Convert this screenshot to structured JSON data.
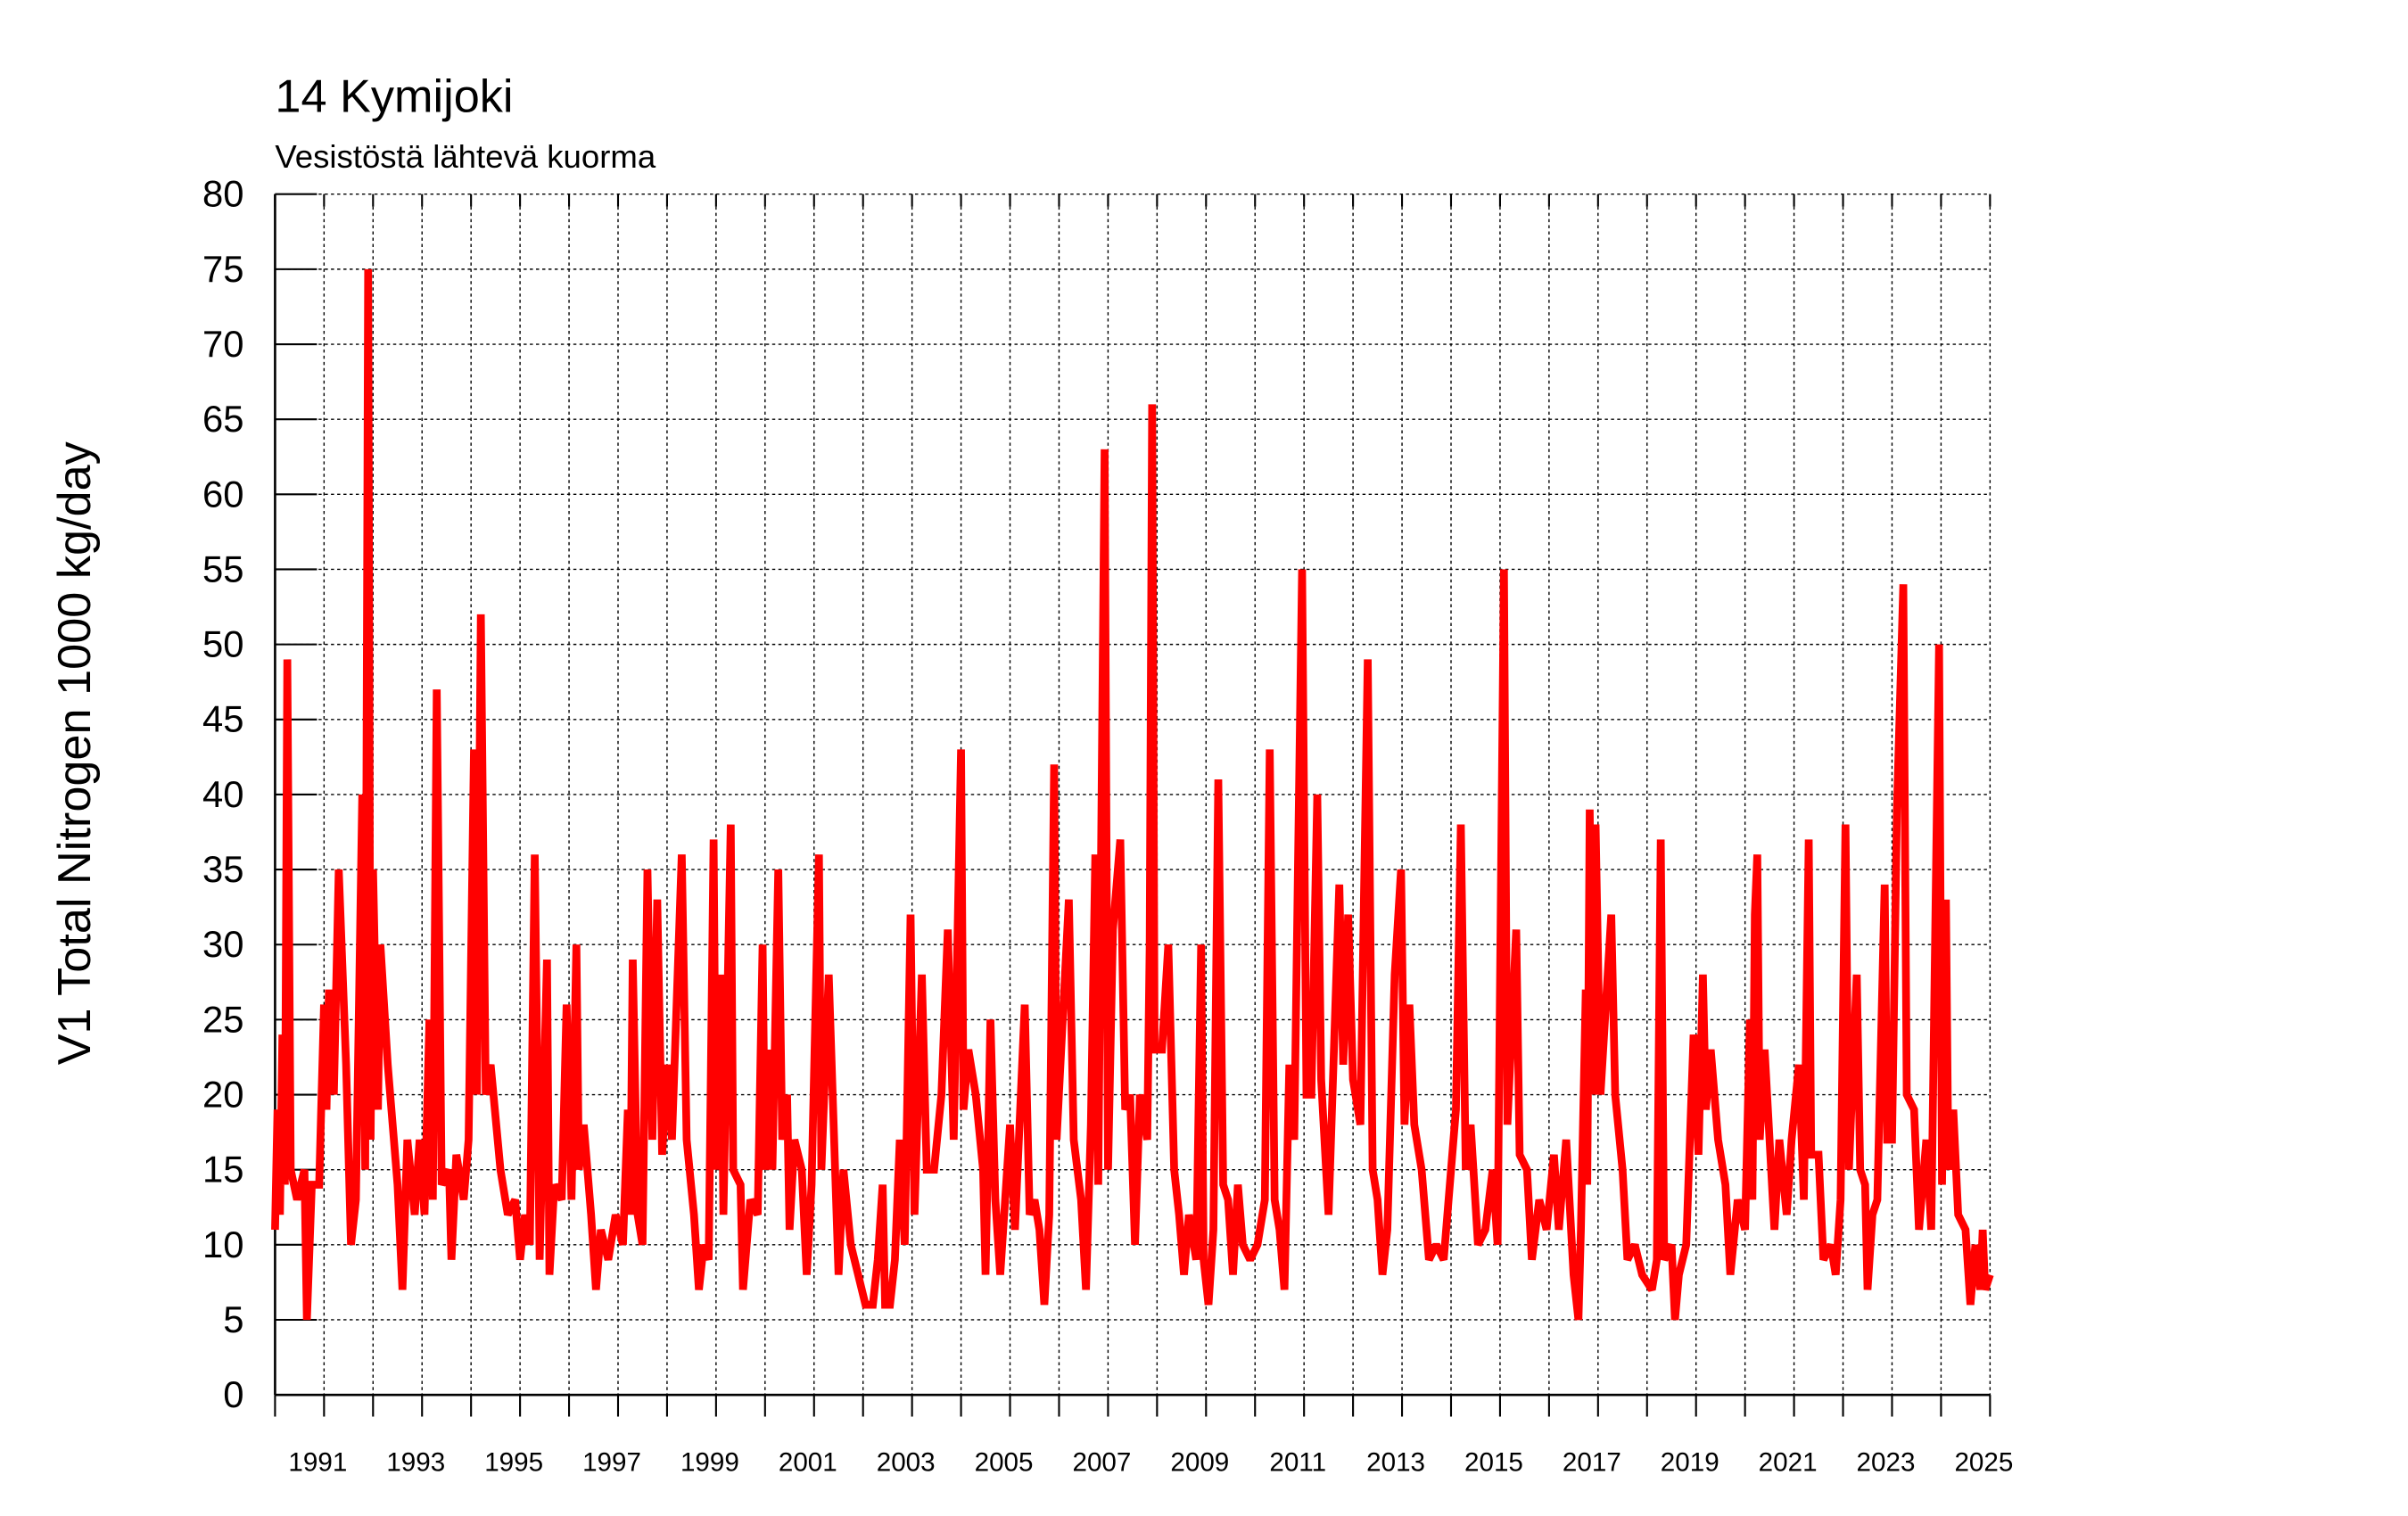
{
  "chart_data": {
    "type": "line",
    "title": "14 Kymijoki",
    "subtitle": "Vesistöstä lähtevä kuorma",
    "ylabel": "V1 Total Nitrogen 1000 kg/day",
    "color": "#ff0000",
    "grid": true,
    "xlim": [
      1990,
      2025
    ],
    "ylim": [
      0,
      80
    ],
    "yticks": [
      0,
      5,
      10,
      15,
      20,
      25,
      30,
      35,
      40,
      45,
      50,
      55,
      60,
      65,
      70,
      75,
      80
    ],
    "xticks": [
      1991,
      1993,
      1995,
      1997,
      1999,
      2001,
      2003,
      2005,
      2007,
      2009,
      2011,
      2013,
      2015,
      2017,
      2019,
      2021,
      2023,
      2025
    ],
    "xminor_ticks": [
      1990,
      1992,
      1994,
      1996,
      1998,
      2000,
      2002,
      2004,
      2006,
      2008,
      2010,
      2012,
      2014,
      2016,
      2018,
      2020,
      2022,
      2024
    ],
    "x": [
      1990.0,
      1990.05,
      1990.1,
      1990.15,
      1990.2,
      1990.25,
      1990.32,
      1990.45,
      1990.6,
      1990.65,
      1990.75,
      1990.9,
      1991.0,
      1991.05,
      1991.1,
      1991.2,
      1991.3,
      1991.45,
      1991.55,
      1991.65,
      1991.78,
      1991.84,
      1991.9,
      1991.95,
      1992.0,
      1992.1,
      1992.15,
      1992.3,
      1992.5,
      1992.6,
      1992.7,
      1992.85,
      1992.95,
      1993.05,
      1993.15,
      1993.22,
      1993.3,
      1993.4,
      1993.55,
      1993.6,
      1993.7,
      1993.85,
      1993.95,
      1994.06,
      1994.12,
      1994.2,
      1994.3,
      1994.4,
      1994.6,
      1994.75,
      1994.9,
      1995.0,
      1995.1,
      1995.2,
      1995.3,
      1995.4,
      1995.55,
      1995.6,
      1995.7,
      1995.85,
      1995.95,
      1996.05,
      1996.15,
      1996.2,
      1996.3,
      1996.45,
      1996.55,
      1996.65,
      1996.8,
      1996.95,
      1997.1,
      1997.2,
      1997.25,
      1997.3,
      1997.4,
      1997.5,
      1997.6,
      1997.7,
      1997.8,
      1997.9,
      1998.0,
      1998.1,
      1998.3,
      1998.4,
      1998.55,
      1998.65,
      1998.75,
      1998.85,
      1998.95,
      1999.0,
      1999.1,
      1999.15,
      1999.3,
      1999.35,
      1999.5,
      1999.55,
      1999.7,
      1999.85,
      1999.95,
      2000.0,
      2000.1,
      2000.15,
      2000.27,
      2000.35,
      2000.45,
      2000.5,
      2000.6,
      2000.75,
      2000.85,
      2000.95,
      2001.1,
      2001.15,
      2001.3,
      2001.4,
      2001.5,
      2001.6,
      2001.75,
      2001.9,
      2002.05,
      2002.2,
      2002.3,
      2002.4,
      2002.45,
      2002.55,
      2002.65,
      2002.75,
      2002.85,
      2002.97,
      2003.05,
      2003.2,
      2003.3,
      2003.45,
      2003.6,
      2003.73,
      2003.85,
      2004.0,
      2004.05,
      2004.15,
      2004.3,
      2004.45,
      2004.5,
      2004.6,
      2004.7,
      2004.8,
      2004.9,
      2005.0,
      2005.1,
      2005.3,
      2005.4,
      2005.5,
      2005.6,
      2005.7,
      2005.8,
      2005.9,
      2005.95,
      2006.2,
      2006.3,
      2006.45,
      2006.55,
      2006.65,
      2006.74,
      2006.8,
      2006.93,
      2007.0,
      2007.1,
      2007.25,
      2007.35,
      2007.45,
      2007.55,
      2007.65,
      2007.8,
      2007.85,
      2007.9,
      2007.95,
      2008.1,
      2008.23,
      2008.35,
      2008.45,
      2008.55,
      2008.65,
      2008.8,
      2008.9,
      2008.95,
      2009.05,
      2009.15,
      2009.25,
      2009.35,
      2009.45,
      2009.55,
      2009.65,
      2009.75,
      2009.9,
      2010.05,
      2010.2,
      2010.3,
      2010.4,
      2010.5,
      2010.6,
      2010.7,
      2010.8,
      2010.96,
      2011.05,
      2011.15,
      2011.27,
      2011.35,
      2011.5,
      2011.6,
      2011.72,
      2011.8,
      2011.9,
      2012.0,
      2012.15,
      2012.3,
      2012.4,
      2012.5,
      2012.6,
      2012.7,
      2012.85,
      2012.98,
      2013.05,
      2013.15,
      2013.25,
      2013.4,
      2013.55,
      2013.7,
      2013.85,
      2013.95,
      2014.1,
      2014.2,
      2014.3,
      2014.4,
      2014.55,
      2014.7,
      2014.85,
      2014.95,
      2015.08,
      2015.15,
      2015.33,
      2015.4,
      2015.55,
      2015.65,
      2015.8,
      2015.95,
      2016.1,
      2016.2,
      2016.35,
      2016.5,
      2016.6,
      2016.65,
      2016.75,
      2016.78,
      2016.83,
      2016.9,
      2016.95,
      2017.05,
      2017.27,
      2017.35,
      2017.5,
      2017.6,
      2017.75,
      2017.9,
      2018.1,
      2018.2,
      2018.28,
      2018.35,
      2018.5,
      2018.57,
      2018.65,
      2018.8,
      2018.95,
      2019.05,
      2019.14,
      2019.2,
      2019.3,
      2019.45,
      2019.6,
      2019.7,
      2019.85,
      2020.0,
      2020.1,
      2020.15,
      2020.2,
      2020.25,
      2020.3,
      2020.4,
      2020.5,
      2020.6,
      2020.7,
      2020.85,
      2020.95,
      2021.1,
      2021.2,
      2021.3,
      2021.35,
      2021.5,
      2021.6,
      2021.75,
      2021.85,
      2021.95,
      2022.05,
      2022.12,
      2022.28,
      2022.35,
      2022.45,
      2022.5,
      2022.6,
      2022.7,
      2022.85,
      2022.9,
      2023.0,
      2023.1,
      2023.23,
      2023.3,
      2023.45,
      2023.55,
      2023.7,
      2023.8,
      2023.96,
      2024.02,
      2024.1,
      2024.15,
      2024.25,
      2024.35,
      2024.5,
      2024.6,
      2024.7,
      2024.8,
      2024.85,
      2024.9,
      2025.0
    ],
    "values": [
      11,
      19,
      12,
      24,
      14,
      49,
      15,
      13,
      15,
      5,
      14,
      14,
      26,
      19,
      27,
      20,
      35,
      22,
      10,
      13,
      40,
      15,
      75,
      17,
      35,
      19,
      30,
      22,
      14,
      7,
      17,
      12,
      17,
      12,
      25,
      13,
      47,
      14,
      15,
      9,
      16,
      13,
      17,
      43,
      20,
      52,
      20,
      22,
      15,
      12,
      13,
      9,
      12,
      10,
      36,
      9,
      29,
      8,
      14,
      13,
      26,
      13,
      30,
      15,
      18,
      12,
      7,
      11,
      9,
      12,
      10,
      19,
      12,
      29,
      12,
      10,
      35,
      17,
      33,
      16,
      22,
      17,
      36,
      17,
      12,
      7,
      10,
      9,
      37,
      15,
      28,
      12,
      38,
      15,
      14,
      7,
      13,
      12,
      30,
      15,
      23,
      15,
      35,
      17,
      20,
      11,
      17,
      15,
      8,
      14,
      36,
      15,
      28,
      18,
      8,
      15,
      10,
      8,
      6,
      6,
      9,
      14,
      6,
      6,
      9,
      17,
      10,
      32,
      12,
      28,
      15,
      15,
      20,
      31,
      17,
      43,
      19,
      23,
      20,
      15,
      8,
      25,
      13,
      8,
      13,
      18,
      11,
      26,
      12,
      13,
      11,
      6,
      12,
      42,
      17,
      33,
      17,
      13,
      7,
      18,
      36,
      14,
      63,
      15,
      31,
      37,
      19,
      20,
      10,
      20,
      17,
      30,
      66,
      23,
      23,
      30,
      15,
      12,
      8,
      12,
      9,
      30,
      9,
      6,
      11,
      41,
      14,
      13,
      8,
      14,
      10,
      9,
      10,
      13,
      43,
      13,
      11,
      7,
      22,
      17,
      55,
      20,
      20,
      40,
      21,
      12,
      22,
      34,
      22,
      32,
      21,
      18,
      49,
      15,
      13,
      8,
      11,
      28,
      35,
      18,
      26,
      18,
      15,
      9,
      10,
      9,
      13,
      19,
      38,
      15,
      18,
      10,
      11,
      15,
      10,
      55,
      18,
      31,
      16,
      15,
      9,
      13,
      11,
      16,
      11,
      17,
      8,
      5,
      11,
      27,
      14,
      39,
      20,
      38,
      20,
      32,
      20,
      15,
      9,
      10,
      8,
      7,
      9,
      37,
      9,
      10,
      5,
      8,
      10,
      24,
      16,
      28,
      19,
      23,
      17,
      14,
      8,
      13,
      11,
      25,
      13,
      32,
      36,
      17,
      23,
      17,
      11,
      17,
      12,
      17,
      22,
      13,
      37,
      16,
      16,
      9,
      10,
      8,
      13,
      38,
      15,
      28,
      15,
      14,
      7,
      12,
      13,
      34,
      17,
      17,
      39,
      54,
      20,
      19,
      11,
      17,
      11,
      50,
      14,
      33,
      15,
      19,
      12,
      11,
      6,
      10,
      7,
      11,
      7,
      8
    ]
  }
}
